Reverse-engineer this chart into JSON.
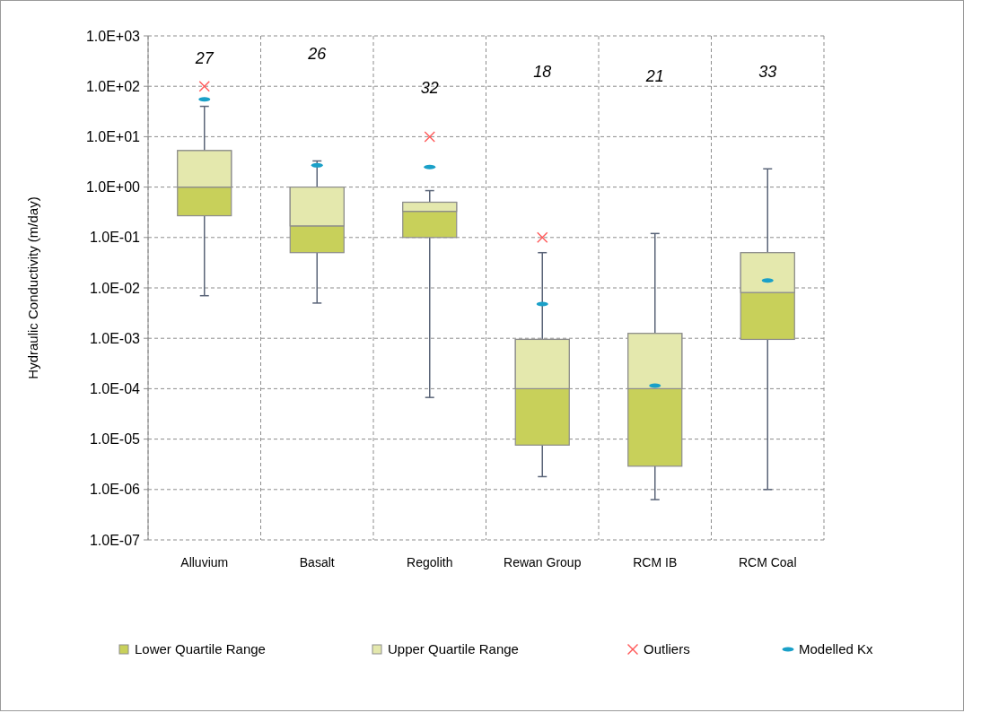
{
  "chart_data": {
    "type": "box",
    "ylabel": "Hydraulic Conductivity (m/day)",
    "log": true,
    "grid": true,
    "legend": "bottom",
    "categories": [
      "Alluvium",
      "Basalt",
      "Regolith",
      "Rewan Group",
      "RCM IB",
      "RCM Coal"
    ],
    "ylim": [
      1e-07,
      1000
    ],
    "yticks": [
      {
        "value": 1e-07,
        "label": "1.0E-07"
      },
      {
        "value": 1e-06,
        "label": "1.0E-06"
      },
      {
        "value": 1e-05,
        "label": "1.0E-05"
      },
      {
        "value": 0.0001,
        "label": "1.0E-04"
      },
      {
        "value": 0.001,
        "label": "1.0E-03"
      },
      {
        "value": 0.01,
        "label": "1.0E-02"
      },
      {
        "value": 0.1,
        "label": "1.0E-01"
      },
      {
        "value": 1,
        "label": "1.0E+00"
      },
      {
        "value": 10,
        "label": "1.0E+01"
      },
      {
        "value": 100,
        "label": "1.0E+02"
      },
      {
        "value": 1000,
        "label": "1.0E+03"
      }
    ],
    "series": [
      {
        "name": "Lower Quartile Range",
        "color": "#c8d05a",
        "boxes": [
          {
            "low": 0.007,
            "q1": 0.27,
            "median": 1,
            "q3": 5.3,
            "high": 40
          },
          {
            "low": 0.005,
            "q1": 0.05,
            "median": 0.17,
            "q3": 1,
            "high": 3.3
          },
          {
            "low": 6.7e-05,
            "q1": 0.1,
            "median": 0.33,
            "q3": 0.5,
            "high": 0.85
          },
          {
            "low": 1.8e-06,
            "q1": 7.6e-06,
            "median": 0.0001,
            "q3": 0.00095,
            "high": 0.05
          },
          {
            "low": 6.3e-07,
            "q1": 2.9e-06,
            "median": 0.0001,
            "q3": 0.00125,
            "high": 0.12
          },
          {
            "low": 1e-06,
            "q1": 0.00095,
            "median": 0.0081,
            "q3": 0.05,
            "high": 2.3
          }
        ]
      },
      {
        "name": "Upper Quartile Range",
        "type": "bar",
        "color": "#e4e8ad",
        "base": [
          1,
          0.17,
          0.33,
          0.0001,
          0.0001,
          0.0081
        ],
        "values": [
          4.3,
          0.83,
          0.17,
          0.00085,
          0.00115,
          0.0419
        ]
      },
      {
        "name": "Outliers",
        "type": "scatter",
        "color": "#ff5a5a",
        "marker": "cross",
        "x": [
          "Alluvium",
          "Regolith",
          "Rewan Group"
        ],
        "values": [
          100,
          10,
          0.1
        ]
      },
      {
        "name": "Modelled Kx",
        "type": "scatter",
        "color": "#1aa0c8",
        "x": [
          "Alluvium",
          "Basalt",
          "Regolith",
          "Rewan Group",
          "RCM IB",
          "RCM Coal"
        ],
        "values": [
          55,
          2.7,
          2.5,
          0.0048,
          0.000115,
          0.014
        ]
      }
    ],
    "annotations": [
      "27",
      "26",
      "32",
      "18",
      "21",
      "33"
    ]
  }
}
